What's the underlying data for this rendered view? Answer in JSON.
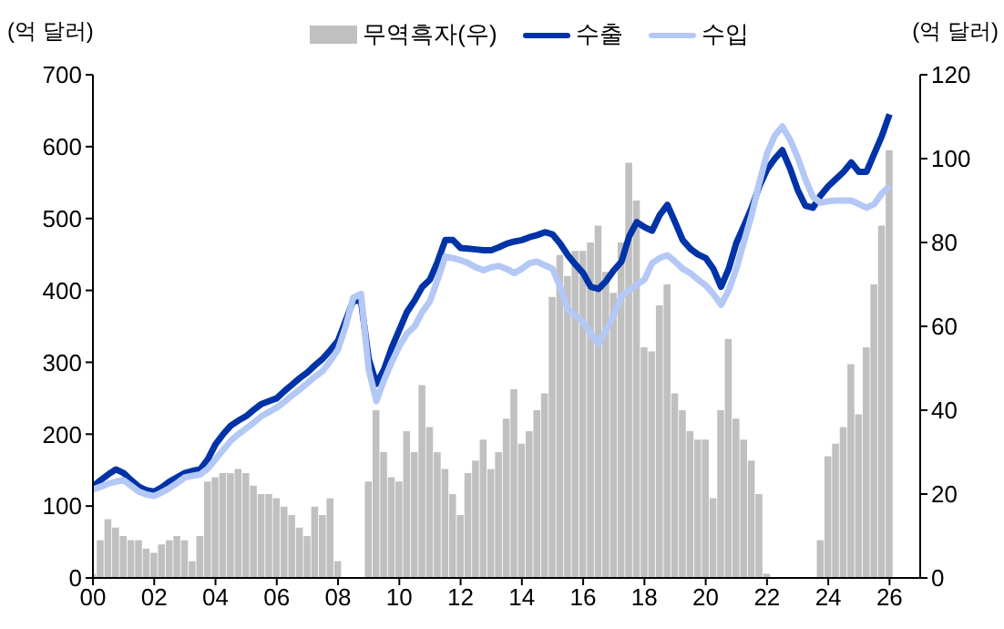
{
  "chart_data": {
    "type": "line",
    "ylabel": "(억 달러)",
    "y2label": "(억 달러)",
    "legend": "top",
    "grid": false,
    "x": [
      2000,
      2000.25,
      2000.5,
      2000.75,
      2001,
      2001.25,
      2001.5,
      2001.75,
      2002,
      2002.25,
      2002.5,
      2002.75,
      2003,
      2003.25,
      2003.5,
      2003.75,
      2004,
      2004.25,
      2004.5,
      2004.75,
      2005,
      2005.25,
      2005.5,
      2005.75,
      2006,
      2006.25,
      2006.5,
      2006.75,
      2007,
      2007.25,
      2007.5,
      2007.75,
      2008,
      2008.25,
      2008.5,
      2008.75,
      2009,
      2009.25,
      2009.5,
      2009.75,
      2010,
      2010.25,
      2010.5,
      2010.75,
      2011,
      2011.25,
      2011.5,
      2011.75,
      2012,
      2012.25,
      2012.5,
      2012.75,
      2013,
      2013.25,
      2013.5,
      2013.75,
      2014,
      2014.25,
      2014.5,
      2014.75,
      2015,
      2015.25,
      2015.5,
      2015.75,
      2016,
      2016.25,
      2016.5,
      2016.75,
      2017,
      2017.25,
      2017.5,
      2017.75,
      2018,
      2018.25,
      2018.5,
      2018.75,
      2019,
      2019.25,
      2019.5,
      2019.75,
      2020,
      2020.25,
      2020.5,
      2020.75,
      2021,
      2021.25,
      2021.5,
      2021.75,
      2022,
      2022.25,
      2022.5,
      2022.75,
      2023,
      2023.25,
      2023.5,
      2023.75,
      2024,
      2024.25,
      2024.5,
      2024.75,
      2025,
      2025.25,
      2025.5,
      2025.75,
      2026
    ],
    "series": [
      {
        "name": "무역흑자(우)",
        "type": "bar",
        "axis": "y2",
        "color": "#c0c0c0",
        "values": [
          1,
          9,
          14,
          12,
          10,
          9,
          9,
          7,
          6,
          8,
          9,
          10,
          9,
          4,
          10,
          23,
          24,
          25,
          25,
          26,
          25,
          22,
          20,
          20,
          19,
          17,
          15,
          12,
          10,
          17,
          15,
          19,
          4,
          null,
          null,
          null,
          23,
          40,
          30,
          24,
          23,
          35,
          30,
          46,
          36,
          30,
          26,
          20,
          15,
          25,
          28,
          33,
          26,
          30,
          38,
          45,
          32,
          35,
          40,
          44,
          67,
          77,
          72,
          78,
          78,
          80,
          84,
          73,
          68,
          80,
          99,
          90,
          55,
          54,
          65,
          70,
          44,
          40,
          35,
          33,
          33,
          19,
          40,
          57,
          38,
          33,
          28,
          20,
          1,
          null,
          null,
          null,
          null,
          null,
          null,
          9,
          29,
          32,
          36,
          51,
          39,
          55,
          70,
          84,
          102
        ]
      },
      {
        "name": "수출",
        "color": "#0033a8",
        "values": [
          127,
          136,
          144,
          151,
          146,
          136,
          127,
          122,
          120,
          126,
          134,
          140,
          146,
          149,
          151,
          165,
          186,
          200,
          212,
          219,
          225,
          234,
          242,
          246,
          250,
          260,
          269,
          278,
          286,
          296,
          305,
          317,
          330,
          358,
          386,
          385,
          305,
          270,
          290,
          320,
          345,
          370,
          386,
          405,
          415,
          440,
          470,
          470,
          459,
          458,
          457,
          456,
          456,
          460,
          465,
          468,
          470,
          474,
          477,
          481,
          478,
          465,
          449,
          436,
          424,
          405,
          402,
          413,
          428,
          440,
          475,
          495,
          488,
          483,
          505,
          519,
          495,
          470,
          458,
          450,
          445,
          430,
          405,
          430,
          466,
          490,
          515,
          545,
          568,
          583,
          595,
          570,
          540,
          518,
          515,
          532,
          545,
          555,
          565,
          578,
          565,
          565,
          590,
          615,
          645
        ]
      },
      {
        "name": "수입",
        "color": "#b4c8f5",
        "values": [
          123,
          127,
          131,
          134,
          136,
          128,
          120,
          116,
          114,
          119,
          125,
          132,
          140,
          142,
          144,
          152,
          165,
          178,
          191,
          200,
          208,
          216,
          225,
          231,
          237,
          245,
          254,
          262,
          271,
          280,
          288,
          302,
          318,
          350,
          390,
          395,
          290,
          246,
          275,
          300,
          322,
          340,
          350,
          370,
          385,
          415,
          447,
          445,
          442,
          438,
          432,
          428,
          432,
          434,
          430,
          424,
          430,
          438,
          440,
          435,
          430,
          405,
          373,
          365,
          356,
          340,
          326,
          345,
          365,
          392,
          400,
          408,
          415,
          438,
          445,
          449,
          440,
          430,
          424,
          415,
          407,
          395,
          380,
          400,
          430,
          468,
          505,
          550,
          590,
          615,
          628,
          610,
          585,
          555,
          530,
          522,
          524,
          525,
          525,
          525,
          520,
          515,
          520,
          535,
          545
        ]
      }
    ],
    "xlim": [
      2000,
      2027
    ],
    "xticks": [
      {
        "value": 2000,
        "label": "00"
      },
      {
        "value": 2002,
        "label": "02"
      },
      {
        "value": 2004,
        "label": "04"
      },
      {
        "value": 2006,
        "label": "06"
      },
      {
        "value": 2008,
        "label": "08"
      },
      {
        "value": 2010,
        "label": "10"
      },
      {
        "value": 2012,
        "label": "12"
      },
      {
        "value": 2014,
        "label": "14"
      },
      {
        "value": 2016,
        "label": "16"
      },
      {
        "value": 2018,
        "label": "18"
      },
      {
        "value": 2020,
        "label": "20"
      },
      {
        "value": 2022,
        "label": "22"
      },
      {
        "value": 2024,
        "label": "24"
      },
      {
        "value": 2026,
        "label": "26"
      }
    ],
    "ylim": [
      0,
      700
    ],
    "yticks": [
      0,
      100,
      200,
      300,
      400,
      500,
      600,
      700
    ],
    "y2lim": [
      0,
      120
    ],
    "y2ticks": [
      0,
      20,
      40,
      60,
      80,
      100,
      120
    ]
  }
}
